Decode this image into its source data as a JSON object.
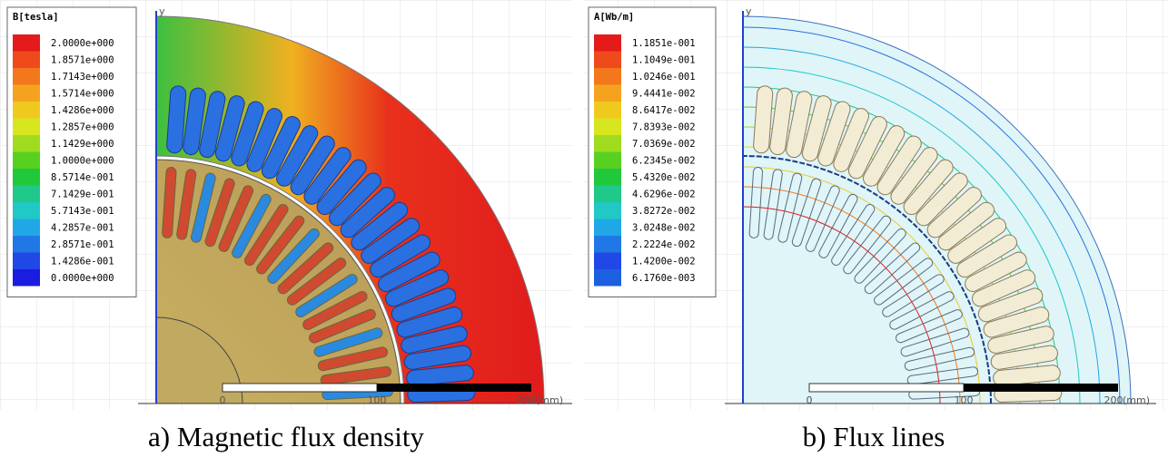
{
  "panels": [
    {
      "legend": {
        "title": "B[tesla]",
        "entries": [
          {
            "label": "2.0000e+000",
            "color": "#e51b1b"
          },
          {
            "label": "1.8571e+000",
            "color": "#ee4a1c"
          },
          {
            "label": "1.7143e+000",
            "color": "#f3781d"
          },
          {
            "label": "1.5714e+000",
            "color": "#f5a31e"
          },
          {
            "label": "1.4286e+000",
            "color": "#f0c91f"
          },
          {
            "label": "1.2857e+000",
            "color": "#d8e61f"
          },
          {
            "label": "1.1429e+000",
            "color": "#9fdc20"
          },
          {
            "label": "1.0000e+000",
            "color": "#58d020"
          },
          {
            "label": "8.5714e-001",
            "color": "#20c83c"
          },
          {
            "label": "7.1429e-001",
            "color": "#20c88a"
          },
          {
            "label": "5.7143e-001",
            "color": "#20c8c6"
          },
          {
            "label": "4.2857e-001",
            "color": "#20a8e6"
          },
          {
            "label": "2.8571e-001",
            "color": "#2078e6"
          },
          {
            "label": "1.4286e-001",
            "color": "#2048e6"
          },
          {
            "label": "0.0000e+000",
            "color": "#1c1ce0"
          }
        ]
      },
      "axis_label": "y",
      "scale": [
        "0",
        "100",
        "200",
        "(mm)"
      ],
      "caption": "a) Magnetic flux density"
    },
    {
      "legend": {
        "title": "A[Wb/m]",
        "entries": [
          {
            "label": "1.1851e-001",
            "color": "#e51b1b"
          },
          {
            "label": "1.1049e-001",
            "color": "#ee4a1c"
          },
          {
            "label": "1.0246e-001",
            "color": "#f3781d"
          },
          {
            "label": "9.4441e-002",
            "color": "#f5a31e"
          },
          {
            "label": "8.6417e-002",
            "color": "#f0c91f"
          },
          {
            "label": "7.8393e-002",
            "color": "#d8e61f"
          },
          {
            "label": "7.0369e-002",
            "color": "#9fdc20"
          },
          {
            "label": "6.2345e-002",
            "color": "#58d020"
          },
          {
            "label": "5.4320e-002",
            "color": "#20c83c"
          },
          {
            "label": "4.6296e-002",
            "color": "#20c88a"
          },
          {
            "label": "3.8272e-002",
            "color": "#20c8c6"
          },
          {
            "label": "3.0248e-002",
            "color": "#20a8e6"
          },
          {
            "label": "2.2224e-002",
            "color": "#2078e6"
          },
          {
            "label": "1.4200e-002",
            "color": "#2048e6"
          },
          {
            "label": "6.1760e-003",
            "color": "#1c60e0"
          }
        ]
      },
      "axis_label": "y",
      "scale": [
        "0",
        "100",
        "200",
        "(mm)"
      ],
      "caption": "b) Flux lines"
    }
  ]
}
